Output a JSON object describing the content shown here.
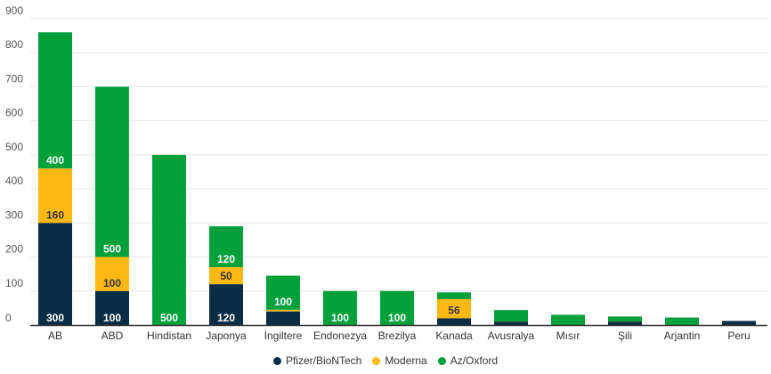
{
  "chart_data": {
    "type": "bar",
    "stacked": true,
    "title": "",
    "xlabel": "",
    "ylabel": "",
    "ylim": [
      0,
      900
    ],
    "yticks": [
      0,
      100,
      200,
      300,
      400,
      500,
      600,
      700,
      800,
      900
    ],
    "grid": true,
    "legend_position": "bottom-center",
    "categories": [
      "AB",
      "ABD",
      "Hindistan",
      "Japonya",
      "İngiltere",
      "Endonezya",
      "Brezilya",
      "Kanada",
      "Avusralya",
      "Mısır",
      "Şili",
      "Arjantin",
      "Peru"
    ],
    "series": [
      {
        "name": "Pfizer/BioNTech",
        "color": "#0a2d45",
        "values": [
          300,
          100,
          0,
          120,
          40,
          0,
          0,
          20,
          10,
          0,
          10,
          0,
          12
        ],
        "labels": [
          "300",
          "100",
          "",
          "120",
          "",
          "",
          "",
          "",
          "",
          "",
          "",
          "",
          ""
        ]
      },
      {
        "name": "Moderna",
        "color": "#fdb913",
        "values": [
          160,
          100,
          0,
          50,
          5,
          0,
          0,
          56,
          0,
          0,
          0,
          0,
          0
        ],
        "labels": [
          "160",
          "100",
          "",
          "50",
          "",
          "",
          "",
          "56",
          "",
          "",
          "",
          "",
          ""
        ]
      },
      {
        "name": "Az/Oxford",
        "color": "#00a03a",
        "values": [
          400,
          500,
          500,
          120,
          100,
          100,
          100,
          20,
          34,
          30,
          15,
          22,
          0
        ],
        "labels": [
          "400",
          "500",
          "500",
          "120",
          "100",
          "100",
          "100",
          "",
          "",
          "",
          "",
          "",
          ""
        ]
      }
    ]
  }
}
